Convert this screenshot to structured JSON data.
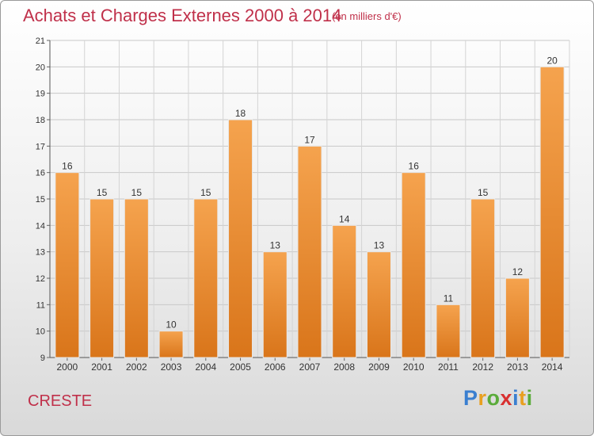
{
  "title": "Achats et Charges Externes 2000 à 2014",
  "unit_label": "(en milliers d'€)",
  "commune": "CRESTE",
  "logo": {
    "letters": [
      "P",
      "r",
      "o",
      "x",
      "i",
      "t",
      "i"
    ],
    "colors": [
      "#3a7fd0",
      "#e8a020",
      "#5aab3a",
      "#d83030",
      "#3a7fd0",
      "#e8a020",
      "#5aab3a"
    ]
  },
  "colors": {
    "bar_light": "#f5a34e",
    "bar_dark": "#d9751a",
    "text_accent": "#c0304a"
  },
  "chart_data": {
    "type": "bar",
    "categories": [
      "2000",
      "2001",
      "2002",
      "2003",
      "2004",
      "2005",
      "2006",
      "2007",
      "2008",
      "2009",
      "2010",
      "2011",
      "2012",
      "2013",
      "2014"
    ],
    "values": [
      16,
      15,
      15,
      10,
      15,
      18,
      13,
      17,
      14,
      13,
      16,
      11,
      15,
      12,
      20
    ],
    "ylim": [
      9,
      21
    ],
    "yticks": [
      9,
      10,
      11,
      12,
      13,
      14,
      15,
      16,
      17,
      18,
      19,
      20,
      21
    ],
    "grid": true,
    "legend": "none"
  }
}
